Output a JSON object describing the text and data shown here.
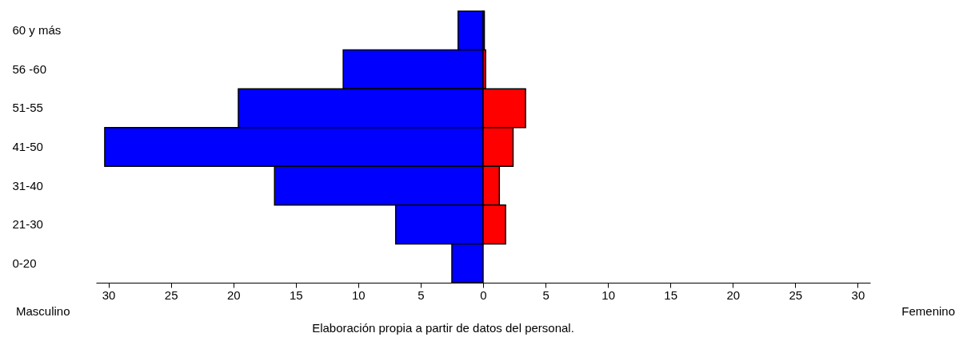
{
  "chart_data": {
    "type": "bar",
    "orientation": "horizontal",
    "categories": [
      "60 y más",
      "56 -60",
      "51-55",
      "41-50",
      "31-40",
      "21-30",
      "0-20"
    ],
    "series": [
      {
        "color": "#0000ff",
        "values": [
          -2,
          -11.2,
          -19.6,
          -30.3,
          -16.7,
          -7,
          -2.5
        ]
      },
      {
        "color": "#ff0000",
        "values": [
          0.1,
          0.2,
          3.4,
          2.4,
          1.3,
          1.8,
          null
        ]
      }
    ],
    "xlim": [
      -31,
      31
    ],
    "xticks": [
      {
        "value": -30,
        "label": "30"
      },
      {
        "value": -25,
        "label": "25"
      },
      {
        "value": -20,
        "label": "20"
      },
      {
        "value": -15,
        "label": "15"
      },
      {
        "value": -10,
        "label": "10"
      },
      {
        "value": -5,
        "label": "5"
      },
      0,
      5,
      10,
      15,
      20,
      25,
      30
    ],
    "annotations": [
      "Masculino",
      "Femenino",
      "Elaboración propia a partir de datos del personal."
    ],
    "stacked": true,
    "grid": false
  }
}
